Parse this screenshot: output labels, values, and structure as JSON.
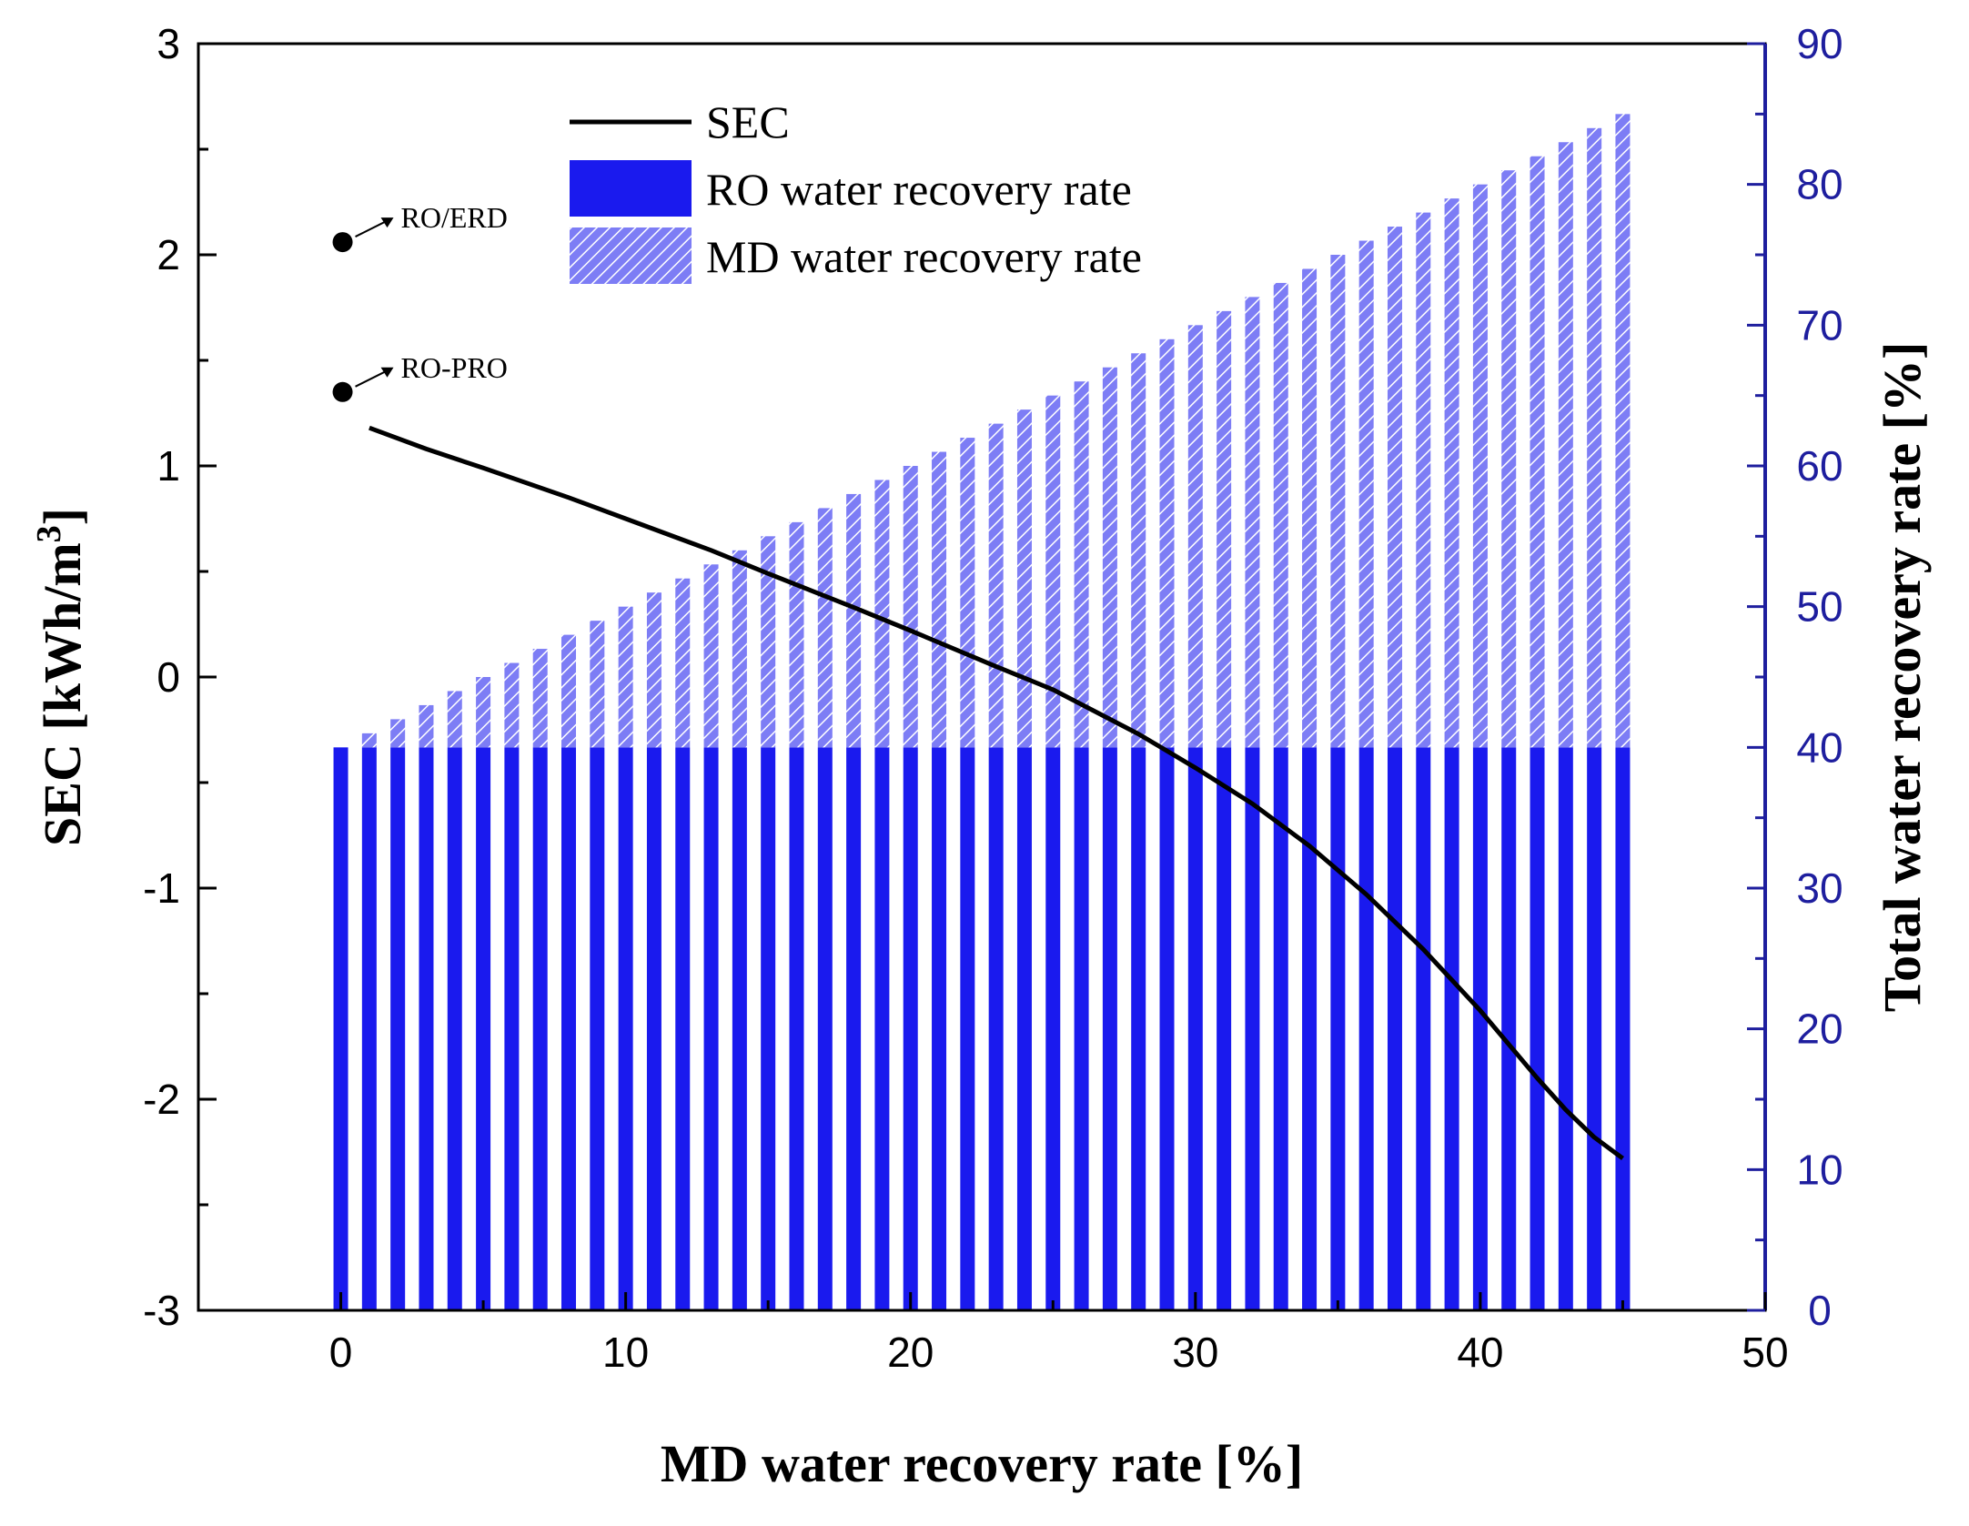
{
  "chart_data": {
    "type": "bar",
    "title": "",
    "xlabel": "MD water recovery rate [%]",
    "ylabel": "SEC [kWh/m",
    "ylabel_sup": "3",
    "ylabel_close": "]",
    "y2label": "Total water recovery rate [%]",
    "xlim": [
      -5,
      50
    ],
    "ylim": [
      -3,
      3
    ],
    "y2lim": [
      0,
      90
    ],
    "x_ticks": [
      0,
      10,
      20,
      30,
      40,
      50
    ],
    "x_tick_labels": [
      "0",
      "10",
      "20",
      "30",
      "40",
      "50"
    ],
    "y_ticks": [
      -3,
      -2,
      -1,
      0,
      1,
      2,
      3
    ],
    "y_tick_labels": [
      "-3",
      "-2",
      "-1",
      "0",
      "1",
      "2",
      "3"
    ],
    "y2_ticks": [
      0,
      10,
      20,
      30,
      40,
      50,
      60,
      70,
      80,
      90
    ],
    "y2_tick_labels": [
      "0",
      "10",
      "20",
      "30",
      "40",
      "50",
      "60",
      "70",
      "80",
      "90"
    ],
    "grid": false,
    "legend_position": "top-center",
    "colors": {
      "ro": "#1a1aee",
      "md": "#7d7df5",
      "md_hatch": "#ffffff",
      "sec": "#000000",
      "right_axis": "#1e1e9e"
    },
    "x": [
      0,
      1,
      2,
      3,
      4,
      5,
      6,
      7,
      8,
      9,
      10,
      11,
      12,
      13,
      14,
      15,
      16,
      17,
      18,
      19,
      20,
      21,
      22,
      23,
      24,
      25,
      26,
      27,
      28,
      29,
      30,
      31,
      32,
      33,
      34,
      35,
      36,
      37,
      38,
      39,
      40,
      41,
      42,
      43,
      44,
      45
    ],
    "series": [
      {
        "name": "SEC",
        "axis": "left",
        "type": "line",
        "x": [
          1,
          3,
          5,
          8,
          10,
          13,
          15,
          18,
          20,
          23,
          25,
          28,
          30,
          32,
          34,
          36,
          38,
          40,
          42,
          43,
          44,
          45
        ],
        "values": [
          1.18,
          1.08,
          0.99,
          0.85,
          0.75,
          0.6,
          0.49,
          0.33,
          0.22,
          0.05,
          -0.06,
          -0.27,
          -0.43,
          -0.6,
          -0.8,
          -1.03,
          -1.29,
          -1.58,
          -1.9,
          -2.05,
          -2.18,
          -2.28
        ]
      },
      {
        "name": "RO water recovery rate",
        "axis": "right",
        "type": "bar",
        "stack": "total",
        "values": [
          40,
          40,
          40,
          40,
          40,
          40,
          40,
          40,
          40,
          40,
          40,
          40,
          40,
          40,
          40,
          40,
          40,
          40,
          40,
          40,
          40,
          40,
          40,
          40,
          40,
          40,
          40,
          40,
          40,
          40,
          40,
          40,
          40,
          40,
          40,
          40,
          40,
          40,
          40,
          40,
          40,
          40,
          40,
          40,
          40,
          40
        ]
      },
      {
        "name": "MD water recovery rate",
        "axis": "right",
        "type": "bar",
        "stack": "total",
        "pattern": "hatch",
        "values": [
          0,
          1,
          2,
          3,
          4,
          5,
          6,
          7,
          8,
          9,
          10,
          11,
          12,
          13,
          14,
          15,
          16,
          17,
          18,
          19,
          20,
          21,
          22,
          23,
          24,
          25,
          26,
          27,
          28,
          29,
          30,
          31,
          32,
          33,
          34,
          35,
          36,
          37,
          38,
          39,
          40,
          41,
          42,
          43,
          44,
          45
        ]
      }
    ],
    "annotations": [
      {
        "label": "RO/ERD",
        "x": 0,
        "y": 2.06
      },
      {
        "label": "RO-PRO",
        "x": 0,
        "y": 1.35
      }
    ]
  }
}
